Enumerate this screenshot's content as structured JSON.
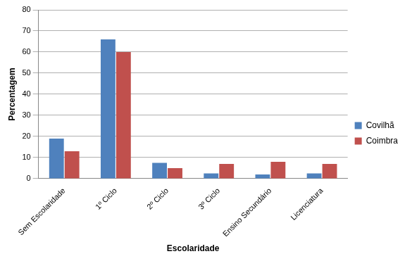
{
  "chart_data": {
    "type": "bar",
    "categories": [
      "Sem Escolaridade",
      "1º Ciclo",
      "2º Ciclo",
      "3º Ciclo",
      "Ensino Secundário",
      "Licenciatura"
    ],
    "series": [
      {
        "name": "Covilhã",
        "color": "#4f81bd",
        "values": [
          19,
          66,
          7.5,
          2.5,
          2,
          2.5
        ]
      },
      {
        "name": "Coimbra",
        "color": "#c0504d",
        "values": [
          13,
          60,
          5,
          7,
          8,
          7
        ]
      }
    ],
    "x_label": "Escolaridade",
    "y_label": "Percentagem",
    "ylim": [
      0,
      80
    ],
    "yticks": [
      0,
      10,
      20,
      30,
      40,
      50,
      60,
      70,
      80
    ],
    "grid": true,
    "legend": "right"
  }
}
